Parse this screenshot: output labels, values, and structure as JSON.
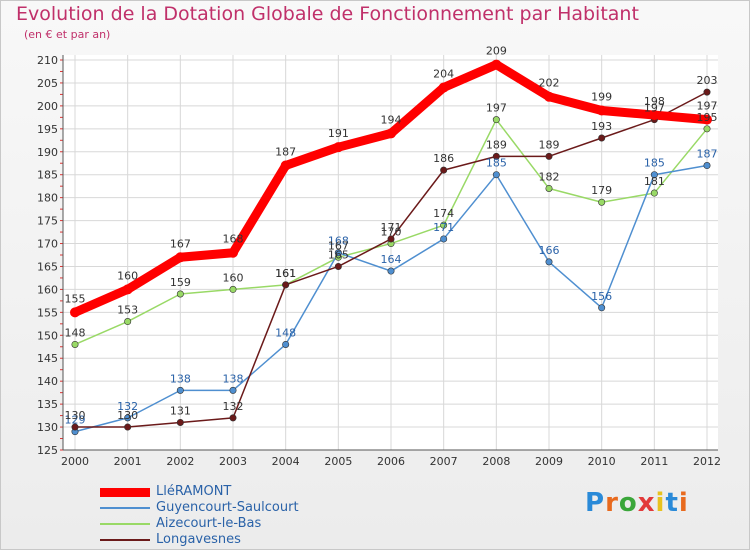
{
  "header": {
    "title": "Evolution de la Dotation Globale de Fonctionnement par Habitant",
    "subtitle": "(en € et par an)"
  },
  "logo": {
    "text": "Proxiti",
    "letter_colors": [
      "#2a8ad8",
      "#e86a1e",
      "#3aa63a",
      "#e23a3a",
      "#e8c21e",
      "#2a8ad8",
      "#e86a1e"
    ]
  },
  "colors": {
    "title": "#c0306a",
    "axis": "#555555",
    "grid": "#d8d8d8",
    "tick_marks": "#dd3333"
  },
  "chart_data": {
    "type": "line",
    "title": "Evolution de la Dotation Globale de Fonctionnement par Habitant",
    "subtitle": "(en € et par an)",
    "x": [
      2000,
      2001,
      2002,
      2003,
      2004,
      2005,
      2006,
      2007,
      2008,
      2009,
      2010,
      2011,
      2012
    ],
    "ylim": [
      125,
      210
    ],
    "yticks": [
      125,
      130,
      135,
      140,
      145,
      150,
      155,
      160,
      165,
      170,
      175,
      180,
      185,
      190,
      195,
      200,
      205,
      210
    ],
    "grid": true,
    "legend_position": "bottom-left",
    "series": [
      {
        "name": "LléRAMONT",
        "color": "#ff0000",
        "labelColor": "#333333",
        "values": [
          155,
          160,
          167,
          168,
          187,
          191,
          194,
          204,
          209,
          202,
          199,
          198,
          197
        ]
      },
      {
        "name": "Guyencourt-Saulcourt",
        "color": "#4f8fd0",
        "labelColor": "#2a62a8",
        "values": [
          129,
          132,
          138,
          138,
          148,
          168,
          164,
          171,
          185,
          166,
          156,
          185,
          187
        ]
      },
      {
        "name": "Aizecourt-le-Bas",
        "color": "#99d966",
        "labelColor": "#333333",
        "values": [
          148,
          153,
          159,
          160,
          161,
          167,
          170,
          174,
          197,
          182,
          179,
          181,
          195
        ]
      },
      {
        "name": "Longavesnes",
        "color": "#6b1a1a",
        "labelColor": "#333333",
        "values": [
          130,
          130,
          131,
          132,
          161,
          165,
          171,
          186,
          189,
          189,
          193,
          197,
          203
        ]
      }
    ]
  }
}
